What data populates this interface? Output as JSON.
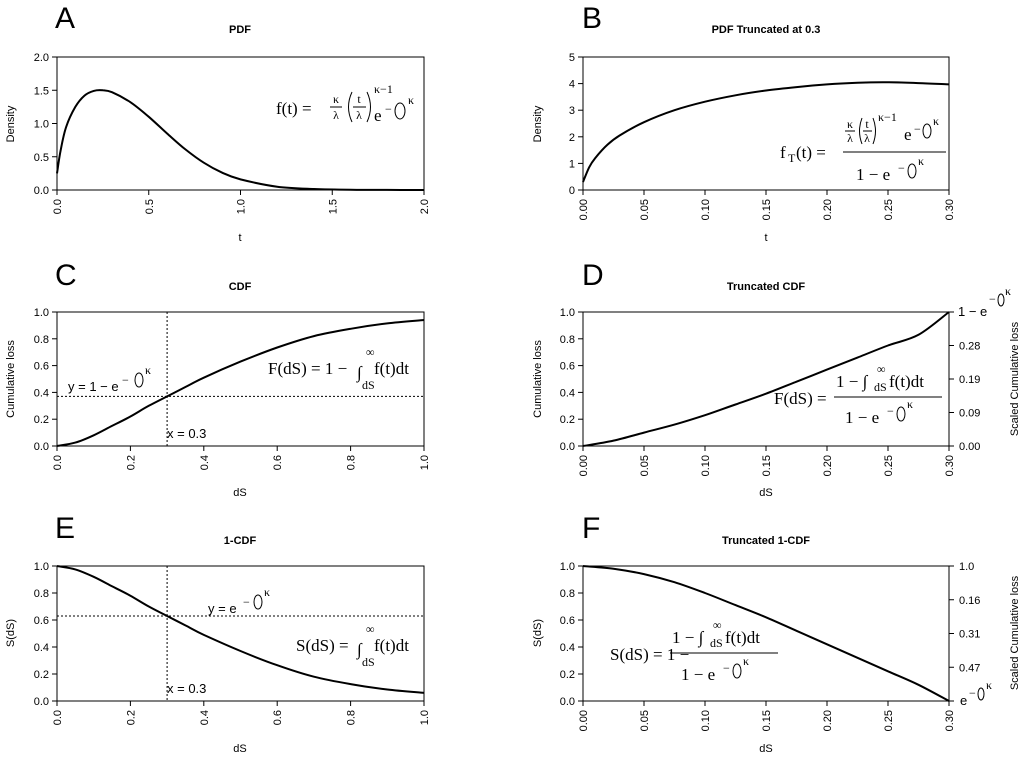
{
  "chart_data": [
    {
      "id": "A",
      "type": "line",
      "panel_label": "A",
      "title": "PDF",
      "xlabel": "t",
      "ylabel": "Density",
      "xlim": [
        0,
        2
      ],
      "ylim": [
        0,
        2
      ],
      "x_ticks": [
        "0.0",
        "0.5",
        "1.0",
        "1.5",
        "2.0"
      ],
      "x_tick_values": [
        0,
        0.5,
        1,
        1.5,
        2
      ],
      "y_ticks": [
        "0.0",
        "0.5",
        "1.0",
        "1.5",
        "2.0"
      ],
      "y_tick_values": [
        0,
        0.5,
        1,
        1.5,
        2
      ],
      "series": [
        {
          "name": "density",
          "x": [
            0.0,
            0.02,
            0.05,
            0.1,
            0.15,
            0.2,
            0.25,
            0.3,
            0.4,
            0.5,
            0.6,
            0.7,
            0.8,
            0.9,
            1.0,
            1.2,
            1.4,
            1.6,
            1.8,
            2.0
          ],
          "y": [
            0.25,
            0.6,
            0.95,
            1.25,
            1.42,
            1.49,
            1.5,
            1.47,
            1.32,
            1.1,
            0.85,
            0.61,
            0.41,
            0.26,
            0.16,
            0.05,
            0.015,
            0.004,
            0.001,
            0.0
          ]
        }
      ],
      "formula": "f(t) = κ/λ (t/λ)^(κ−1) e^−(t/λ)^κ",
      "eq_lhs": "f(t) =",
      "eq_kappa": "κ",
      "eq_lambda": "λ",
      "eq_t": "t",
      "eq_exp": "κ−1",
      "eq_e": "e",
      "eq_minus": "−",
      "eq_kexp": "κ"
    },
    {
      "id": "B",
      "type": "line",
      "panel_label": "B",
      "title": "PDF Truncated at 0.3",
      "xlabel": "t",
      "ylabel": "Density",
      "xlim": [
        0,
        0.3
      ],
      "ylim": [
        0,
        5
      ],
      "x_ticks": [
        "0.00",
        "0.05",
        "0.10",
        "0.15",
        "0.20",
        "0.25",
        "0.30"
      ],
      "x_tick_values": [
        0,
        0.05,
        0.1,
        0.15,
        0.2,
        0.25,
        0.3
      ],
      "y_ticks": [
        "0",
        "1",
        "2",
        "3",
        "4",
        "5"
      ],
      "y_tick_values": [
        0,
        1,
        2,
        3,
        4,
        5
      ],
      "series": [
        {
          "name": "truncated density",
          "x": [
            0.0,
            0.005,
            0.01,
            0.02,
            0.03,
            0.05,
            0.075,
            0.1,
            0.125,
            0.15,
            0.175,
            0.2,
            0.225,
            0.25,
            0.275,
            0.3
          ],
          "y": [
            0.3,
            0.85,
            1.2,
            1.7,
            2.05,
            2.55,
            3.0,
            3.32,
            3.56,
            3.74,
            3.87,
            3.97,
            4.03,
            4.05,
            4.02,
            3.97
          ]
        }
      ],
      "formula": "fT(t) = [κ/λ (t/λ)^(κ−1) e^−(t/λ)^κ] / [1 − e^−(t/λ)^κ]",
      "eq_f": "f",
      "eq_sub": "T",
      "eq_lhs": "(t) =",
      "eq_kappa": "κ",
      "eq_lambda": "λ",
      "eq_t": "t",
      "eq_exp": "κ−1",
      "eq_e": "e",
      "eq_minus": "−",
      "eq_kexp": "κ",
      "eq_den": "1 − e"
    },
    {
      "id": "C",
      "type": "line",
      "panel_label": "C",
      "title": "CDF",
      "xlabel": "dS",
      "ylabel": "Cumulative loss",
      "xlim": [
        0,
        1
      ],
      "ylim": [
        0,
        1
      ],
      "x_ticks": [
        "0.0",
        "0.2",
        "0.4",
        "0.6",
        "0.8",
        "1.0"
      ],
      "x_tick_values": [
        0,
        0.2,
        0.4,
        0.6,
        0.8,
        1
      ],
      "y_ticks": [
        "0.0",
        "0.2",
        "0.4",
        "0.6",
        "0.8",
        "1.0"
      ],
      "y_tick_values": [
        0,
        0.2,
        0.4,
        0.6,
        0.8,
        1
      ],
      "series": [
        {
          "name": "CDF",
          "x": [
            0.0,
            0.05,
            0.1,
            0.15,
            0.2,
            0.25,
            0.3,
            0.35,
            0.4,
            0.5,
            0.6,
            0.7,
            0.8,
            0.9,
            1.0
          ],
          "y": [
            0.0,
            0.025,
            0.08,
            0.15,
            0.22,
            0.3,
            0.37,
            0.44,
            0.51,
            0.63,
            0.735,
            0.82,
            0.875,
            0.915,
            0.94
          ]
        }
      ],
      "guide_x": 0.3,
      "guide_y": 0.37,
      "annot_x": "x = 0.3",
      "annot_y": "y = 1 − e",
      "formula": "F(dS) = 1 − ∫dS^∞ f(t)dt",
      "eq_lhs": "F(dS) = 1 −",
      "eq_int": "∫",
      "eq_inf": "∞",
      "eq_low": "dS",
      "eq_body": "f(t)dt",
      "eq_minus": "−",
      "eq_kexp": "κ"
    },
    {
      "id": "D",
      "type": "line",
      "panel_label": "D",
      "title": "Truncated CDF",
      "xlabel": "dS",
      "ylabel": "Cumulative loss",
      "y2label": "Scaled Cumulative loss",
      "xlim": [
        0,
        0.3
      ],
      "ylim": [
        0,
        1
      ],
      "x_ticks": [
        "0.00",
        "0.05",
        "0.10",
        "0.15",
        "0.20",
        "0.25",
        "0.30"
      ],
      "x_tick_values": [
        0,
        0.05,
        0.1,
        0.15,
        0.2,
        0.25,
        0.3
      ],
      "y_ticks": [
        "0.0",
        "0.2",
        "0.4",
        "0.6",
        "0.8",
        "1.0"
      ],
      "y_tick_values": [
        0,
        0.2,
        0.4,
        0.6,
        0.8,
        1
      ],
      "y2_ticks": [
        "0.00",
        "0.09",
        "0.19",
        "0.28"
      ],
      "y2_tick_values": [
        0,
        0.25,
        0.5,
        0.75
      ],
      "y2_top_label": "1 − e",
      "series": [
        {
          "name": "truncated CDF",
          "x": [
            0.0,
            0.025,
            0.05,
            0.075,
            0.1,
            0.125,
            0.15,
            0.175,
            0.2,
            0.225,
            0.25,
            0.275,
            0.3
          ],
          "y": [
            0.0,
            0.04,
            0.1,
            0.16,
            0.23,
            0.31,
            0.39,
            0.48,
            0.57,
            0.66,
            0.75,
            0.83,
            1.0
          ]
        }
      ],
      "formula": "F(dS) = [1 − ∫dS^∞ f(t)dt] / [1 − e^−(t/λ)^κ]",
      "eq_lhs": "F(dS) =",
      "eq_num": "1 − ∫",
      "eq_inf": "∞",
      "eq_low": "dS",
      "eq_body": "f(t)dt",
      "eq_den": "1 − e",
      "eq_minus": "−",
      "eq_kexp": "κ"
    },
    {
      "id": "E",
      "type": "line",
      "panel_label": "E",
      "title": "1-CDF",
      "xlabel": "dS",
      "ylabel": "S(dS)",
      "xlim": [
        0,
        1
      ],
      "ylim": [
        0,
        1
      ],
      "x_ticks": [
        "0.0",
        "0.2",
        "0.4",
        "0.6",
        "0.8",
        "1.0"
      ],
      "x_tick_values": [
        0,
        0.2,
        0.4,
        0.6,
        0.8,
        1
      ],
      "y_ticks": [
        "0.0",
        "0.2",
        "0.4",
        "0.6",
        "0.8",
        "1.0"
      ],
      "y_tick_values": [
        0,
        0.2,
        0.4,
        0.6,
        0.8,
        1
      ],
      "series": [
        {
          "name": "survival",
          "x": [
            0.0,
            0.05,
            0.1,
            0.15,
            0.2,
            0.25,
            0.3,
            0.35,
            0.4,
            0.5,
            0.6,
            0.7,
            0.8,
            0.9,
            1.0
          ],
          "y": [
            1.0,
            0.975,
            0.92,
            0.85,
            0.78,
            0.7,
            0.63,
            0.56,
            0.49,
            0.37,
            0.265,
            0.18,
            0.125,
            0.085,
            0.06
          ]
        }
      ],
      "guide_x": 0.3,
      "guide_y": 0.63,
      "annot_x": "x = 0.3",
      "annot_y": "y = e",
      "formula": "S(dS) = ∫dS^∞ f(t)dt",
      "eq_lhs": "S(dS) =",
      "eq_int": "∫",
      "eq_inf": "∞",
      "eq_low": "dS",
      "eq_body": "f(t)dt",
      "eq_minus": "−",
      "eq_kexp": "κ"
    },
    {
      "id": "F",
      "type": "line",
      "panel_label": "F",
      "title": "Truncated 1-CDF",
      "xlabel": "dS",
      "ylabel": "S(dS)",
      "y2label": "Scaled Cumulative loss",
      "xlim": [
        0,
        0.3
      ],
      "ylim": [
        0,
        1
      ],
      "x_ticks": [
        "0.00",
        "0.05",
        "0.10",
        "0.15",
        "0.20",
        "0.25",
        "0.30"
      ],
      "x_tick_values": [
        0,
        0.05,
        0.1,
        0.15,
        0.2,
        0.25,
        0.3
      ],
      "y_ticks": [
        "0.0",
        "0.2",
        "0.4",
        "0.6",
        "0.8",
        "1.0"
      ],
      "y_tick_values": [
        0,
        0.2,
        0.4,
        0.6,
        0.8,
        1
      ],
      "y2_ticks": [
        "1.0",
        "0.16",
        "0.31",
        "0.47"
      ],
      "y2_tick_values": [
        1,
        0.75,
        0.5,
        0.25
      ],
      "y2_bottom_label": "e",
      "series": [
        {
          "name": "truncated survival",
          "x": [
            0.0,
            0.025,
            0.05,
            0.075,
            0.1,
            0.125,
            0.15,
            0.175,
            0.2,
            0.225,
            0.25,
            0.275,
            0.3
          ],
          "y": [
            1.0,
            0.98,
            0.94,
            0.88,
            0.8,
            0.71,
            0.62,
            0.52,
            0.42,
            0.32,
            0.22,
            0.12,
            0.0
          ]
        }
      ],
      "formula": "S(dS) = 1 − [1 − ∫dS^∞ f(t)dt] / [1 − e^−(t/λ)^κ]",
      "eq_lhs": "S(dS) = 1 −",
      "eq_num": "1 − ∫",
      "eq_inf": "∞",
      "eq_low": "dS",
      "eq_body": "f(t)dt",
      "eq_den": "1 − e",
      "eq_minus": "−",
      "eq_kexp": "κ"
    }
  ]
}
